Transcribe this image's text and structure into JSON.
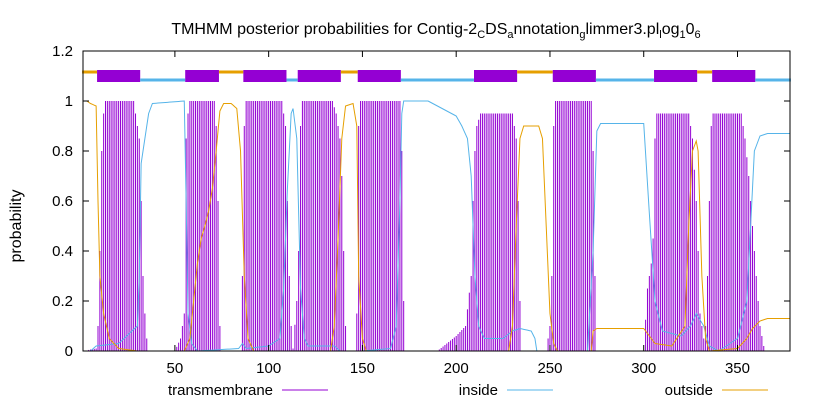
{
  "chart_data": {
    "type": "line",
    "title": {
      "prefix": "TMHMM posterior probabilities for Contig-2",
      "sub1": "C",
      "mid1": "DS",
      "sub2": "a",
      "mid2": "nnotation",
      "sub3": "g",
      "mid3": "limmer3.pl",
      "sub4": "l",
      "mid4": "og",
      "sub5": "1",
      "mid5": "0",
      "sub6": "6"
    },
    "xlabel": "",
    "ylabel": "probability",
    "xlim": [
      1,
      378
    ],
    "ylim": [
      0,
      1.2
    ],
    "x_ticks": [
      50,
      100,
      150,
      200,
      250,
      300,
      350
    ],
    "y_ticks": [
      "0",
      "0.2",
      "0.4",
      "0.6",
      "0.8",
      "1",
      "1.2"
    ],
    "grid": false,
    "legend_position": "bottom",
    "colors": {
      "transmembrane": "#9400d3",
      "inside": "#56b4e9",
      "outside": "#e69f00"
    },
    "topology_bar": {
      "y": 1.1,
      "segments": [
        {
          "type": "outside",
          "start": 1,
          "end": 8
        },
        {
          "type": "transmembrane",
          "start": 9,
          "end": 31
        },
        {
          "type": "inside",
          "start": 32,
          "end": 55
        },
        {
          "type": "transmembrane",
          "start": 56,
          "end": 73
        },
        {
          "type": "outside",
          "start": 74,
          "end": 86
        },
        {
          "type": "transmembrane",
          "start": 87,
          "end": 109
        },
        {
          "type": "inside",
          "start": 110,
          "end": 115
        },
        {
          "type": "transmembrane",
          "start": 116,
          "end": 138
        },
        {
          "type": "outside",
          "start": 139,
          "end": 147
        },
        {
          "type": "transmembrane",
          "start": 148,
          "end": 170
        },
        {
          "type": "inside",
          "start": 171,
          "end": 209
        },
        {
          "type": "transmembrane",
          "start": 210,
          "end": 232
        },
        {
          "type": "outside",
          "start": 233,
          "end": 251
        },
        {
          "type": "transmembrane",
          "start": 252,
          "end": 274
        },
        {
          "type": "inside",
          "start": 275,
          "end": 305
        },
        {
          "type": "transmembrane",
          "start": 306,
          "end": 328
        },
        {
          "type": "outside",
          "start": 329,
          "end": 336
        },
        {
          "type": "transmembrane",
          "start": 337,
          "end": 359
        },
        {
          "type": "inside",
          "start": 360,
          "end": 378
        }
      ]
    },
    "series": [
      {
        "name": "transmembrane",
        "style": "impulses",
        "points": [
          [
            1,
            0
          ],
          [
            8,
            0.01
          ],
          [
            9,
            0.1
          ],
          [
            10,
            0.4
          ],
          [
            11,
            0.8
          ],
          [
            12,
            0.95
          ],
          [
            13,
            1
          ],
          [
            28,
            1
          ],
          [
            29,
            0.95
          ],
          [
            31,
            0.85
          ],
          [
            32,
            0.6
          ],
          [
            33,
            0.3
          ],
          [
            34,
            0.15
          ],
          [
            35,
            0.05
          ],
          [
            36,
            0
          ],
          [
            50,
            0
          ],
          [
            53,
            0.05
          ],
          [
            55,
            0.15
          ],
          [
            56,
            0.85
          ],
          [
            57,
            0.95
          ],
          [
            58,
            1
          ],
          [
            71,
            1
          ],
          [
            72,
            0.9
          ],
          [
            73,
            0.6
          ],
          [
            74,
            0.1
          ],
          [
            75,
            0
          ],
          [
            85,
            0
          ],
          [
            86,
            0.3
          ],
          [
            87,
            0.9
          ],
          [
            88,
            1
          ],
          [
            107,
            1
          ],
          [
            109,
            0.9
          ],
          [
            110,
            0.6
          ],
          [
            111,
            0.3
          ],
          [
            112,
            0.1
          ],
          [
            113,
            0.01
          ],
          [
            115,
            0.2
          ],
          [
            116,
            0.4
          ],
          [
            117,
            0.9
          ],
          [
            118,
            1
          ],
          [
            134,
            1
          ],
          [
            136,
            0.95
          ],
          [
            138,
            0.85
          ],
          [
            139,
            0.7
          ],
          [
            140,
            0.4
          ],
          [
            141,
            0.1
          ],
          [
            142,
            0
          ],
          [
            146,
            0
          ],
          [
            147,
            0.15
          ],
          [
            148,
            0.9
          ],
          [
            149,
            1
          ],
          [
            170,
            1
          ],
          [
            171,
            0.8
          ],
          [
            172,
            0.2
          ],
          [
            173,
            0
          ],
          [
            190,
            0
          ],
          [
            195,
            0.03
          ],
          [
            200,
            0.06
          ],
          [
            205,
            0.1
          ],
          [
            208,
            0.3
          ],
          [
            209,
            0.6
          ],
          [
            210,
            0.8
          ],
          [
            211,
            0.9
          ],
          [
            213,
            0.95
          ],
          [
            230,
            0.95
          ],
          [
            232,
            0.85
          ],
          [
            233,
            0.6
          ],
          [
            234,
            0.2
          ],
          [
            235,
            0
          ],
          [
            248,
            0
          ],
          [
            250,
            0.1
          ],
          [
            251,
            0.3
          ],
          [
            252,
            0.9
          ],
          [
            253,
            1
          ],
          [
            272,
            1
          ],
          [
            273,
            0.8
          ],
          [
            274,
            0.3
          ],
          [
            275,
            0
          ],
          [
            300,
            0
          ],
          [
            302,
            0.25
          ],
          [
            304,
            0.35
          ],
          [
            305,
            0.45
          ],
          [
            306,
            0.85
          ],
          [
            307,
            0.95
          ],
          [
            324,
            0.95
          ],
          [
            326,
            0.85
          ],
          [
            328,
            0.6
          ],
          [
            329,
            0.4
          ],
          [
            330,
            0.15
          ],
          [
            332,
            0.05
          ],
          [
            333,
            0.1
          ],
          [
            334,
            0.3
          ],
          [
            335,
            0.6
          ],
          [
            336,
            0.9
          ],
          [
            337,
            0.95
          ],
          [
            352,
            0.95
          ],
          [
            354,
            0.85
          ],
          [
            356,
            0.7
          ],
          [
            358,
            0.5
          ],
          [
            360,
            0.3
          ],
          [
            362,
            0.1
          ],
          [
            364,
            0.02
          ],
          [
            365,
            0
          ],
          [
            378,
            0
          ]
        ]
      },
      {
        "name": "inside",
        "style": "line",
        "points": [
          [
            1,
            0
          ],
          [
            5,
            0
          ],
          [
            8,
            0.02
          ],
          [
            20,
            0.03
          ],
          [
            30,
            0.1
          ],
          [
            31,
            0.3
          ],
          [
            32,
            0.75
          ],
          [
            34,
            0.85
          ],
          [
            36,
            0.95
          ],
          [
            38,
            0.99
          ],
          [
            55,
            1
          ],
          [
            56,
            0.6
          ],
          [
            57,
            0.15
          ],
          [
            59,
            0.03
          ],
          [
            62,
            0
          ],
          [
            84,
            0.01
          ],
          [
            86,
            0.03
          ],
          [
            88,
            0.01
          ],
          [
            100,
            0.02
          ],
          [
            106,
            0.05
          ],
          [
            108,
            0.25
          ],
          [
            110,
            0.65
          ],
          [
            112,
            0.95
          ],
          [
            113,
            0.97
          ],
          [
            115,
            0.85
          ],
          [
            117,
            0.25
          ],
          [
            119,
            0.05
          ],
          [
            121,
            0.02
          ],
          [
            135,
            0.02
          ],
          [
            138,
            0
          ],
          [
            150,
            0
          ],
          [
            165,
            0.01
          ],
          [
            168,
            0.1
          ],
          [
            170,
            0.6
          ],
          [
            171,
            0.95
          ],
          [
            172,
            1
          ],
          [
            185,
            1
          ],
          [
            190,
            0.98
          ],
          [
            200,
            0.94
          ],
          [
            203,
            0.9
          ],
          [
            206,
            0.85
          ],
          [
            208,
            0.7
          ],
          [
            210,
            0.3
          ],
          [
            212,
            0.1
          ],
          [
            215,
            0.05
          ],
          [
            225,
            0.05
          ],
          [
            230,
            0.08
          ],
          [
            234,
            0.09
          ],
          [
            240,
            0.08
          ],
          [
            242,
            0.05
          ],
          [
            243,
            0
          ],
          [
            270,
            0
          ],
          [
            273,
            0.4
          ],
          [
            275,
            0.88
          ],
          [
            277,
            0.91
          ],
          [
            300,
            0.91
          ],
          [
            303,
            0.55
          ],
          [
            306,
            0.2
          ],
          [
            310,
            0.08
          ],
          [
            320,
            0.06
          ],
          [
            325,
            0.1
          ],
          [
            328,
            0.15
          ],
          [
            332,
            0.1
          ],
          [
            335,
            0.02
          ],
          [
            340,
            0
          ],
          [
            350,
            0.05
          ],
          [
            355,
            0.2
          ],
          [
            357,
            0.5
          ],
          [
            359,
            0.8
          ],
          [
            362,
            0.86
          ],
          [
            366,
            0.87
          ],
          [
            378,
            0.87
          ]
        ]
      },
      {
        "name": "outside",
        "style": "line",
        "points": [
          [
            1,
            1
          ],
          [
            3,
            1
          ],
          [
            5,
            0.99
          ],
          [
            8,
            0.98
          ],
          [
            9,
            0.6
          ],
          [
            10,
            0.3
          ],
          [
            12,
            0.15
          ],
          [
            15,
            0.05
          ],
          [
            20,
            0.01
          ],
          [
            30,
            0
          ],
          [
            55,
            0
          ],
          [
            58,
            0.05
          ],
          [
            60,
            0.2
          ],
          [
            62,
            0.35
          ],
          [
            64,
            0.45
          ],
          [
            66,
            0.5
          ],
          [
            68,
            0.56
          ],
          [
            70,
            0.65
          ],
          [
            72,
            0.8
          ],
          [
            74,
            0.96
          ],
          [
            76,
            0.99
          ],
          [
            80,
            0.99
          ],
          [
            83,
            0.97
          ],
          [
            85,
            0.8
          ],
          [
            87,
            0.3
          ],
          [
            89,
            0.05
          ],
          [
            92,
            0
          ],
          [
            133,
            0
          ],
          [
            135,
            0.1
          ],
          [
            137,
            0.45
          ],
          [
            139,
            0.85
          ],
          [
            141,
            0.98
          ],
          [
            145,
            0.99
          ],
          [
            147,
            0.9
          ],
          [
            148,
            0.3
          ],
          [
            150,
            0.05
          ],
          [
            152,
            0
          ],
          [
            210,
            0
          ],
          [
            228,
            0
          ],
          [
            230,
            0.1
          ],
          [
            232,
            0.5
          ],
          [
            234,
            0.85
          ],
          [
            236,
            0.9
          ],
          [
            244,
            0.9
          ],
          [
            246,
            0.85
          ],
          [
            248,
            0.5
          ],
          [
            250,
            0.15
          ],
          [
            252,
            0.03
          ],
          [
            254,
            0
          ],
          [
            272,
            0
          ],
          [
            273,
            0.08
          ],
          [
            275,
            0.09
          ],
          [
            300,
            0.09
          ],
          [
            303,
            0.06
          ],
          [
            306,
            0.03
          ],
          [
            315,
            0.02
          ],
          [
            322,
            0.1
          ],
          [
            324,
            0.5
          ],
          [
            326,
            0.8
          ],
          [
            328,
            0.84
          ],
          [
            329,
            0.8
          ],
          [
            331,
            0.3
          ],
          [
            333,
            0.05
          ],
          [
            335,
            0
          ],
          [
            350,
            0.01
          ],
          [
            355,
            0.05
          ],
          [
            358,
            0.09
          ],
          [
            362,
            0.12
          ],
          [
            366,
            0.13
          ],
          [
            378,
            0.13
          ]
        ]
      }
    ]
  }
}
